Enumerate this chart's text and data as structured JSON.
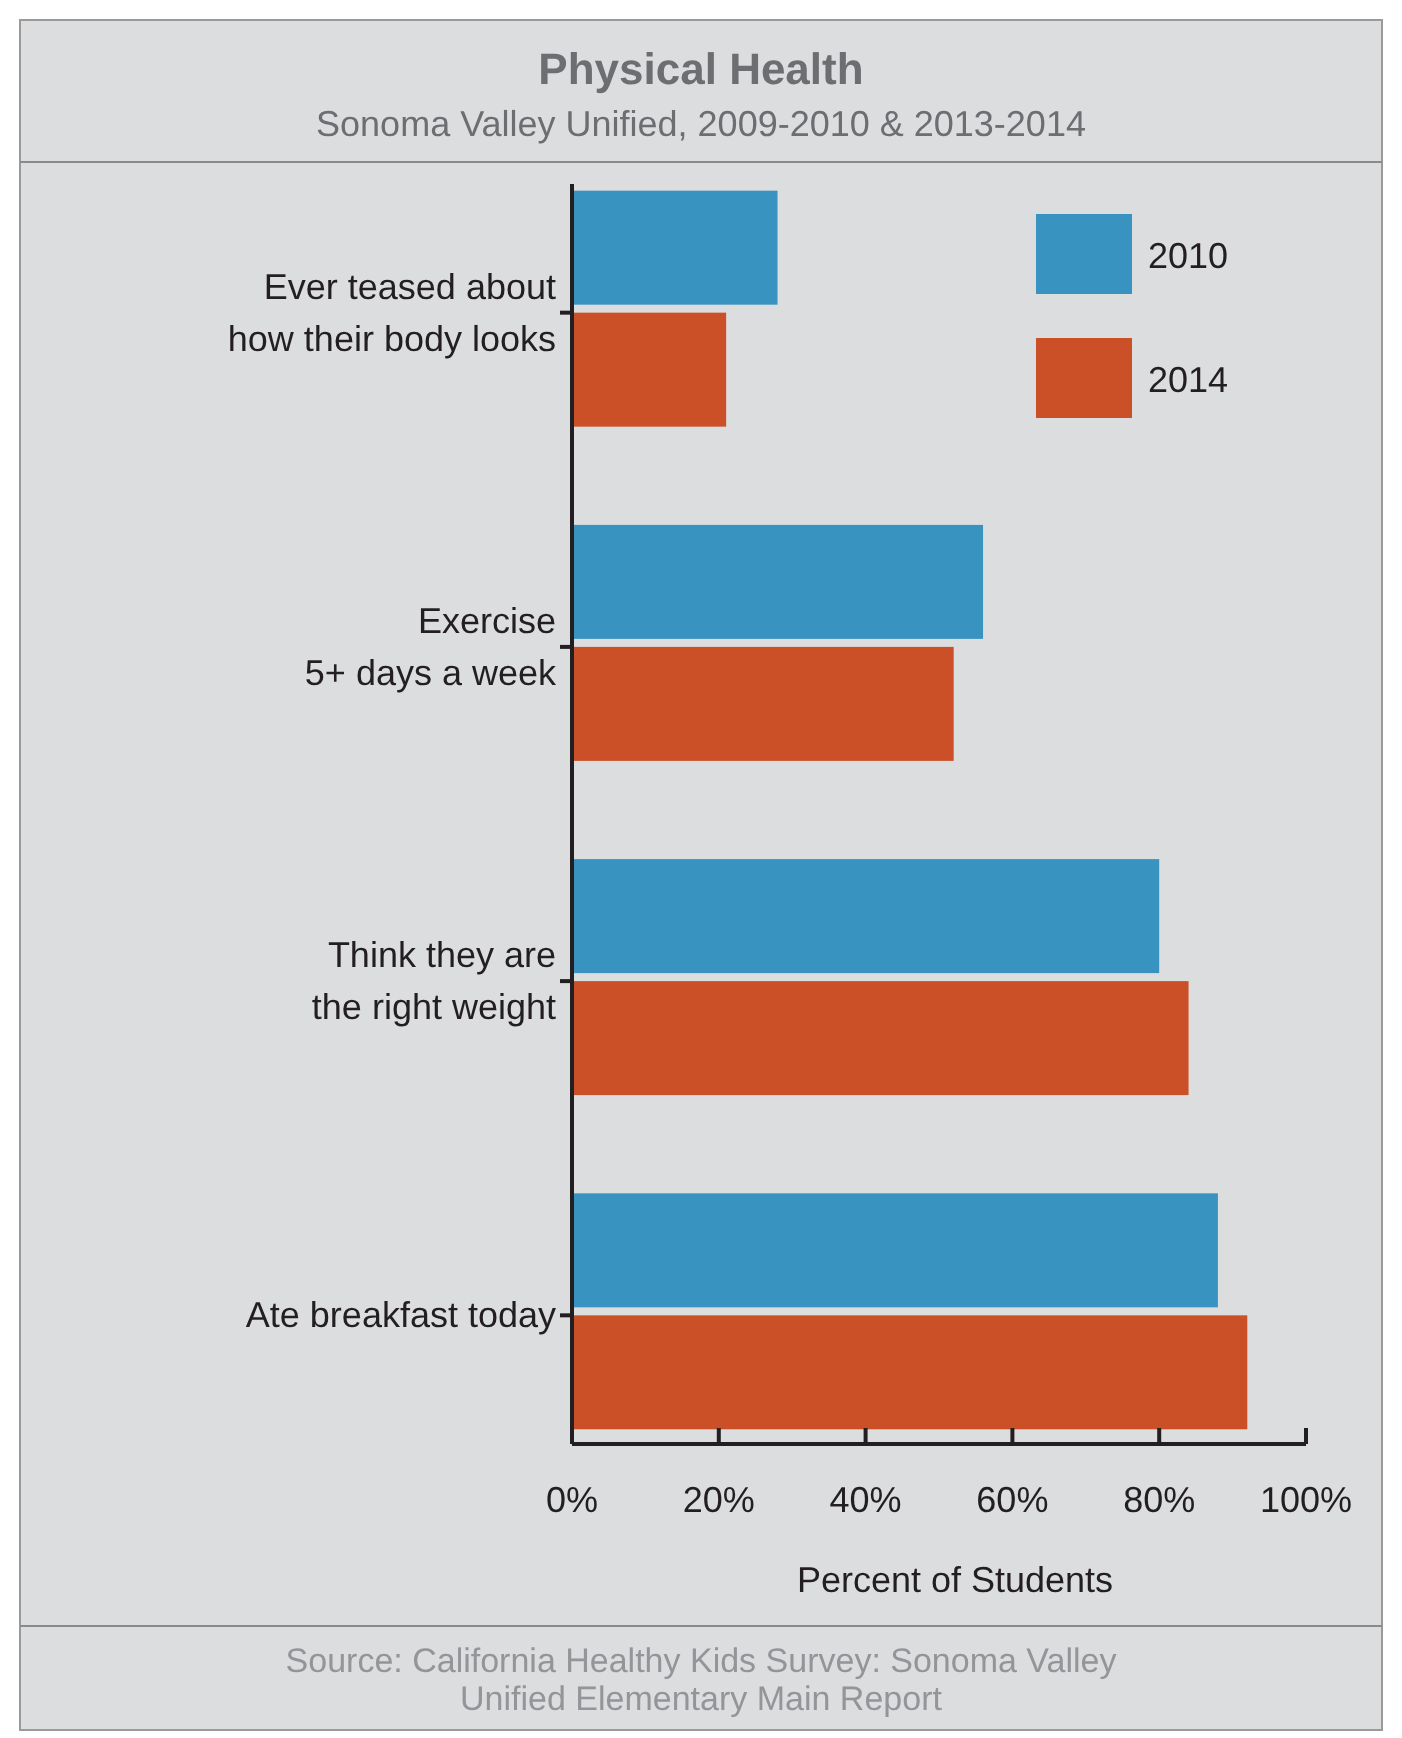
{
  "chart_data": {
    "type": "bar",
    "orientation": "horizontal",
    "title": "Physical Health",
    "subtitle": "Sonoma Valley Unified, 2009-2010 & 2013-2014",
    "xlabel": "Percent of Students",
    "categories": [
      "Ever teased about\nhow their body looks",
      "Exercise\n5+ days a week",
      "Think they are\nthe right weight",
      "Ate breakfast today"
    ],
    "series": [
      {
        "name": "2010",
        "color": "#3893c0",
        "values": [
          28,
          56,
          80,
          88
        ]
      },
      {
        "name": "2014",
        "color": "#cb5027",
        "values": [
          21,
          52,
          84,
          92
        ]
      }
    ],
    "xlim": [
      0,
      100
    ],
    "xticks": [
      {
        "value": 0,
        "label": "0%"
      },
      {
        "value": 20,
        "label": "20%"
      },
      {
        "value": 40,
        "label": "40%"
      },
      {
        "value": 60,
        "label": "60%"
      },
      {
        "value": 80,
        "label": "80%"
      },
      {
        "value": 100,
        "label": "100%"
      }
    ],
    "legend": "top right",
    "grid": false,
    "annotations": [
      "Source: California Healthy Kids Survey: Sonoma Valley\nUnified Elementary Main Report"
    ]
  }
}
